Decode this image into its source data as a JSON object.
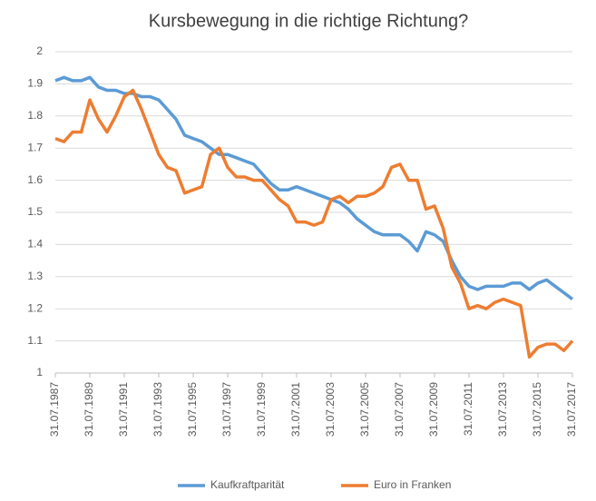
{
  "chart_data": {
    "type": "line",
    "title": "Kursbewegung in die richtige Richtung?",
    "x": [
      "31.07.1987",
      "31.01.1988",
      "31.07.1988",
      "31.01.1989",
      "31.07.1989",
      "31.01.1990",
      "31.07.1990",
      "31.01.1991",
      "31.07.1991",
      "31.01.1992",
      "31.07.1992",
      "31.01.1993",
      "31.07.1993",
      "31.01.1994",
      "31.07.1994",
      "31.01.1995",
      "31.07.1995",
      "31.01.1996",
      "31.07.1996",
      "31.01.1997",
      "31.07.1997",
      "31.01.1998",
      "31.07.1998",
      "31.01.1999",
      "31.07.1999",
      "31.01.2000",
      "31.07.2000",
      "31.01.2001",
      "31.07.2001",
      "31.01.2002",
      "31.07.2002",
      "31.01.2003",
      "31.07.2003",
      "31.01.2004",
      "31.07.2004",
      "31.01.2005",
      "31.07.2005",
      "31.01.2006",
      "31.07.2006",
      "31.01.2007",
      "31.07.2007",
      "31.01.2008",
      "31.07.2008",
      "31.01.2009",
      "31.07.2009",
      "31.01.2010",
      "31.07.2010",
      "31.01.2011",
      "31.07.2011",
      "31.01.2012",
      "31.07.2012",
      "31.01.2013",
      "31.07.2013",
      "31.01.2014",
      "31.07.2014",
      "31.01.2015",
      "31.07.2015",
      "31.01.2016",
      "31.07.2016",
      "31.01.2017",
      "31.07.2017"
    ],
    "series": [
      {
        "name": "Kaufkraftparität",
        "color": "#5b9bd5",
        "values": [
          1.91,
          1.92,
          1.91,
          1.91,
          1.92,
          1.89,
          1.88,
          1.88,
          1.87,
          1.87,
          1.86,
          1.86,
          1.85,
          1.82,
          1.79,
          1.74,
          1.73,
          1.72,
          1.7,
          1.68,
          1.68,
          1.67,
          1.66,
          1.65,
          1.62,
          1.59,
          1.57,
          1.57,
          1.58,
          1.57,
          1.56,
          1.55,
          1.54,
          1.53,
          1.51,
          1.48,
          1.46,
          1.44,
          1.43,
          1.43,
          1.43,
          1.41,
          1.38,
          1.44,
          1.43,
          1.41,
          1.35,
          1.3,
          1.27,
          1.26,
          1.27,
          1.27,
          1.27,
          1.28,
          1.28,
          1.26,
          1.28,
          1.29,
          1.27,
          1.25,
          1.23
        ]
      },
      {
        "name": "Euro in Franken",
        "color": "#ed7d31",
        "values": [
          1.73,
          1.72,
          1.75,
          1.75,
          1.85,
          1.79,
          1.75,
          1.8,
          1.86,
          1.88,
          1.82,
          1.75,
          1.68,
          1.64,
          1.63,
          1.56,
          1.57,
          1.58,
          1.68,
          1.7,
          1.64,
          1.61,
          1.61,
          1.6,
          1.6,
          1.57,
          1.54,
          1.52,
          1.47,
          1.47,
          1.46,
          1.47,
          1.54,
          1.55,
          1.53,
          1.55,
          1.55,
          1.56,
          1.58,
          1.64,
          1.65,
          1.6,
          1.6,
          1.51,
          1.52,
          1.45,
          1.33,
          1.28,
          1.2,
          1.21,
          1.2,
          1.22,
          1.23,
          1.22,
          1.21,
          1.05,
          1.08,
          1.09,
          1.09,
          1.07,
          1.1
        ]
      }
    ],
    "xlim": [
      "31.07.1987",
      "31.07.2017"
    ],
    "xticks": [
      "31.07.1987",
      "31.07.1989",
      "31.07.1991",
      "31.07.1993",
      "31.07.1995",
      "31.07.1997",
      "31.07.1999",
      "31.07.2001",
      "31.07.2003",
      "31.07.2005",
      "31.07.2007",
      "31.07.2009",
      "31.07.2011",
      "31.07.2013",
      "31.07.2015",
      "31.07.2017"
    ],
    "ylim": [
      1,
      2
    ],
    "yticks": [
      1,
      1.1,
      1.2,
      1.3,
      1.4,
      1.5,
      1.6,
      1.7,
      1.8,
      1.9,
      2
    ],
    "grid": true,
    "legend": "bottom"
  }
}
